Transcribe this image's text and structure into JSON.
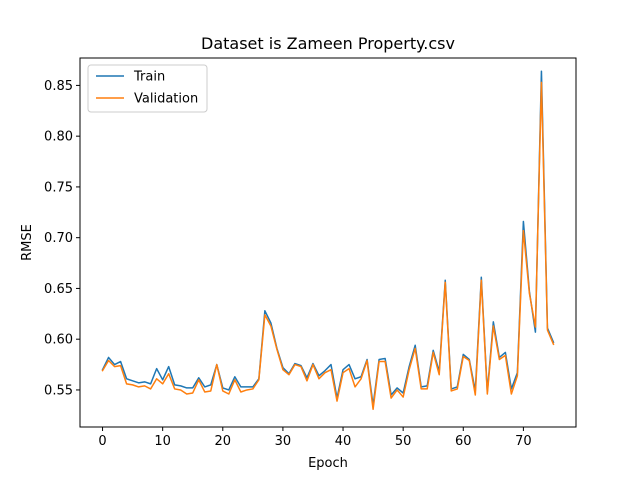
{
  "chart_data": {
    "type": "line",
    "title": "Dataset is Zameen Property.csv",
    "xlabel": "Epoch",
    "ylabel": "RMSE",
    "xlim": [
      -3.75,
      78.75
    ],
    "ylim": [
      0.5135,
      0.877
    ],
    "xticks": [
      0,
      10,
      20,
      30,
      40,
      50,
      60,
      70
    ],
    "yticks": [
      0.55,
      0.6,
      0.65,
      0.7,
      0.75,
      0.8,
      0.85
    ],
    "ytick_labels": [
      "0.55",
      "0.60",
      "0.65",
      "0.70",
      "0.75",
      "0.80",
      "0.85"
    ],
    "legend_position": "upper-left",
    "grid": false,
    "x": [
      0,
      1,
      2,
      3,
      4,
      5,
      6,
      7,
      8,
      9,
      10,
      11,
      12,
      13,
      14,
      15,
      16,
      17,
      18,
      19,
      20,
      21,
      22,
      23,
      24,
      25,
      26,
      27,
      28,
      29,
      30,
      31,
      32,
      33,
      34,
      35,
      36,
      37,
      38,
      39,
      40,
      41,
      42,
      43,
      44,
      45,
      46,
      47,
      48,
      49,
      50,
      51,
      52,
      53,
      54,
      55,
      56,
      57,
      58,
      59,
      60,
      61,
      62,
      63,
      64,
      65,
      66,
      67,
      68,
      69,
      70,
      71,
      72,
      73,
      74,
      75
    ],
    "series": [
      {
        "name": "Train",
        "color": "#1f77b4",
        "values": [
          0.57,
          0.582,
          0.575,
          0.578,
          0.561,
          0.559,
          0.557,
          0.558,
          0.556,
          0.571,
          0.56,
          0.573,
          0.555,
          0.554,
          0.552,
          0.552,
          0.562,
          0.553,
          0.555,
          0.575,
          0.552,
          0.55,
          0.563,
          0.553,
          0.553,
          0.553,
          0.561,
          0.628,
          0.616,
          0.591,
          0.572,
          0.566,
          0.576,
          0.574,
          0.562,
          0.576,
          0.564,
          0.569,
          0.575,
          0.542,
          0.57,
          0.575,
          0.561,
          0.563,
          0.58,
          0.535,
          0.58,
          0.581,
          0.545,
          0.552,
          0.547,
          0.573,
          0.594,
          0.553,
          0.554,
          0.589,
          0.568,
          0.658,
          0.551,
          0.553,
          0.585,
          0.58,
          0.549,
          0.661,
          0.548,
          0.617,
          0.582,
          0.587,
          0.551,
          0.567,
          0.716,
          0.647,
          0.607,
          0.864,
          0.611,
          0.597
        ]
      },
      {
        "name": "Validation",
        "color": "#ff7f0e",
        "values": [
          0.569,
          0.579,
          0.573,
          0.574,
          0.556,
          0.555,
          0.553,
          0.554,
          0.551,
          0.561,
          0.556,
          0.566,
          0.551,
          0.55,
          0.546,
          0.547,
          0.56,
          0.548,
          0.549,
          0.575,
          0.549,
          0.546,
          0.56,
          0.548,
          0.55,
          0.551,
          0.56,
          0.624,
          0.613,
          0.59,
          0.57,
          0.565,
          0.575,
          0.573,
          0.559,
          0.575,
          0.561,
          0.567,
          0.57,
          0.539,
          0.567,
          0.571,
          0.553,
          0.561,
          0.579,
          0.531,
          0.578,
          0.578,
          0.542,
          0.55,
          0.543,
          0.57,
          0.591,
          0.551,
          0.551,
          0.587,
          0.565,
          0.656,
          0.549,
          0.551,
          0.583,
          0.579,
          0.545,
          0.658,
          0.546,
          0.613,
          0.58,
          0.584,
          0.546,
          0.564,
          0.707,
          0.645,
          0.612,
          0.853,
          0.609,
          0.595
        ]
      }
    ]
  }
}
